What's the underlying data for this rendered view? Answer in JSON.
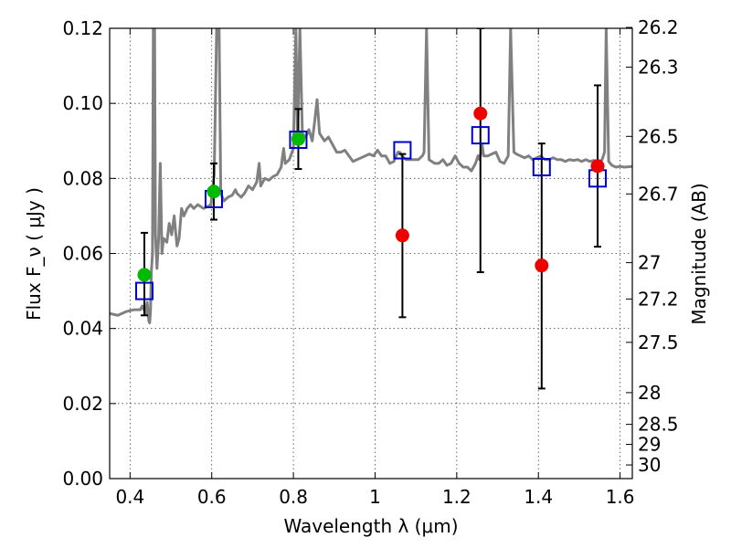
{
  "chart_data": {
    "type": "scatter",
    "xlabel": "Wavelength  λ (μm)",
    "ylabel": "Flux  F_ν  ( μJy )",
    "ylabel_right": "Magnitude (AB)",
    "xlim": [
      0.35,
      1.63
    ],
    "ylim": [
      0.0,
      0.12
    ],
    "grid": true,
    "x_ticks": [
      0.4,
      0.6,
      0.8,
      1.0,
      1.2,
      1.4,
      1.6
    ],
    "x_tick_labels": [
      "0.4",
      "0.6",
      "0.8",
      "1",
      "1.2",
      "1.4",
      "1.6"
    ],
    "y_ticks": [
      0.0,
      0.02,
      0.04,
      0.06,
      0.08,
      0.1,
      0.12
    ],
    "y_tick_labels": [
      "0.00",
      "0.02",
      "0.04",
      "0.06",
      "0.08",
      "0.10",
      "0.12"
    ],
    "right_ticks": [
      {
        "mag": 26.2,
        "label": "26.2"
      },
      {
        "mag": 26.3,
        "label": "26.3"
      },
      {
        "mag": 26.5,
        "label": "26.5"
      },
      {
        "mag": 26.7,
        "label": "26.7"
      },
      {
        "mag": 27.0,
        "label": "27"
      },
      {
        "mag": 27.2,
        "label": "27.2"
      },
      {
        "mag": 27.5,
        "label": "27.5"
      },
      {
        "mag": 28.0,
        "label": "28"
      },
      {
        "mag": 28.5,
        "label": "28.5"
      },
      {
        "mag": 29.0,
        "label": "29"
      },
      {
        "mag": 30.0,
        "label": "30"
      }
    ],
    "colors": {
      "model": "#808080",
      "green": "#00bb00",
      "red": "#ee0000",
      "squares": "#0000cc",
      "errorbar": "#000000"
    },
    "series": [
      {
        "style": "line-gray",
        "points": [
          [
            0.35,
            0.044
          ],
          [
            0.37,
            0.0435
          ],
          [
            0.39,
            0.0445
          ],
          [
            0.41,
            0.045
          ],
          [
            0.425,
            0.045
          ],
          [
            0.43,
            0.046
          ],
          [
            0.438,
            0.044
          ],
          [
            0.442,
            0.047
          ],
          [
            0.446,
            0.042
          ],
          [
            0.448,
            0.0415
          ],
          [
            0.45,
            0.0445
          ],
          [
            0.452,
            0.055
          ],
          [
            0.455,
            0.06
          ],
          [
            0.457,
            0.12
          ],
          [
            0.46,
            0.12
          ],
          [
            0.462,
            0.065
          ],
          [
            0.466,
            0.056
          ],
          [
            0.47,
            0.064
          ],
          [
            0.474,
            0.084
          ],
          [
            0.478,
            0.06
          ],
          [
            0.482,
            0.064
          ],
          [
            0.49,
            0.063
          ],
          [
            0.496,
            0.068
          ],
          [
            0.502,
            0.065
          ],
          [
            0.508,
            0.07
          ],
          [
            0.515,
            0.062
          ],
          [
            0.52,
            0.064
          ],
          [
            0.526,
            0.072
          ],
          [
            0.532,
            0.07
          ],
          [
            0.54,
            0.072
          ],
          [
            0.548,
            0.073
          ],
          [
            0.556,
            0.072
          ],
          [
            0.566,
            0.073
          ],
          [
            0.58,
            0.072
          ],
          [
            0.59,
            0.0725
          ],
          [
            0.598,
            0.073
          ],
          [
            0.606,
            0.081
          ],
          [
            0.612,
            0.12
          ],
          [
            0.618,
            0.12
          ],
          [
            0.622,
            0.076
          ],
          [
            0.63,
            0.074
          ],
          [
            0.64,
            0.075
          ],
          [
            0.65,
            0.0755
          ],
          [
            0.658,
            0.077
          ],
          [
            0.662,
            0.076
          ],
          [
            0.672,
            0.075
          ],
          [
            0.68,
            0.076
          ],
          [
            0.69,
            0.078
          ],
          [
            0.7,
            0.077
          ],
          [
            0.71,
            0.079
          ],
          [
            0.716,
            0.084
          ],
          [
            0.72,
            0.078
          ],
          [
            0.73,
            0.08
          ],
          [
            0.74,
            0.0795
          ],
          [
            0.75,
            0.0805
          ],
          [
            0.76,
            0.081
          ],
          [
            0.77,
            0.083
          ],
          [
            0.776,
            0.088
          ],
          [
            0.78,
            0.084
          ],
          [
            0.79,
            0.085
          ],
          [
            0.8,
            0.088
          ],
          [
            0.806,
            0.12
          ],
          [
            0.81,
            0.09
          ],
          [
            0.816,
            0.12
          ],
          [
            0.822,
            0.092
          ],
          [
            0.83,
            0.091
          ],
          [
            0.838,
            0.093
          ],
          [
            0.846,
            0.09
          ],
          [
            0.852,
            0.095
          ],
          [
            0.858,
            0.101
          ],
          [
            0.864,
            0.092
          ],
          [
            0.876,
            0.09
          ],
          [
            0.886,
            0.091
          ],
          [
            0.896,
            0.089
          ],
          [
            0.906,
            0.087
          ],
          [
            0.916,
            0.087
          ],
          [
            0.926,
            0.0875
          ],
          [
            0.936,
            0.086
          ],
          [
            0.946,
            0.0845
          ],
          [
            0.956,
            0.085
          ],
          [
            0.966,
            0.0855
          ],
          [
            0.976,
            0.086
          ],
          [
            0.986,
            0.0865
          ],
          [
            0.996,
            0.086
          ],
          [
            1.006,
            0.0875
          ],
          [
            1.016,
            0.086
          ],
          [
            1.026,
            0.086
          ],
          [
            1.036,
            0.084
          ],
          [
            1.046,
            0.0845
          ],
          [
            1.052,
            0.086
          ],
          [
            1.056,
            0.087
          ],
          [
            1.06,
            0.087
          ],
          [
            1.066,
            0.086
          ],
          [
            1.076,
            0.085
          ],
          [
            1.086,
            0.085
          ],
          [
            1.096,
            0.085
          ],
          [
            1.106,
            0.085
          ],
          [
            1.116,
            0.086
          ],
          [
            1.12,
            0.087
          ],
          [
            1.126,
            0.12
          ],
          [
            1.132,
            0.085
          ],
          [
            1.146,
            0.084
          ],
          [
            1.156,
            0.084
          ],
          [
            1.166,
            0.085
          ],
          [
            1.176,
            0.0835
          ],
          [
            1.186,
            0.084
          ],
          [
            1.196,
            0.086
          ],
          [
            1.206,
            0.084
          ],
          [
            1.216,
            0.083
          ],
          [
            1.226,
            0.083
          ],
          [
            1.236,
            0.082
          ],
          [
            1.246,
            0.084
          ],
          [
            1.252,
            0.086
          ],
          [
            1.256,
            0.085
          ],
          [
            1.262,
            0.089
          ],
          [
            1.266,
            0.086
          ],
          [
            1.276,
            0.086
          ],
          [
            1.286,
            0.0865
          ],
          [
            1.296,
            0.087
          ],
          [
            1.306,
            0.0845
          ],
          [
            1.316,
            0.084
          ],
          [
            1.326,
            0.086
          ],
          [
            1.332,
            0.12
          ],
          [
            1.34,
            0.087
          ],
          [
            1.346,
            0.0865
          ],
          [
            1.356,
            0.086
          ],
          [
            1.366,
            0.0855
          ],
          [
            1.376,
            0.086
          ],
          [
            1.386,
            0.085
          ],
          [
            1.396,
            0.0855
          ],
          [
            1.406,
            0.086
          ],
          [
            1.416,
            0.085
          ],
          [
            1.426,
            0.085
          ],
          [
            1.436,
            0.0855
          ],
          [
            1.446,
            0.085
          ],
          [
            1.456,
            0.085
          ],
          [
            1.466,
            0.0845
          ],
          [
            1.476,
            0.085
          ],
          [
            1.486,
            0.0848
          ],
          [
            1.496,
            0.085
          ],
          [
            1.506,
            0.0845
          ],
          [
            1.516,
            0.085
          ],
          [
            1.526,
            0.0845
          ],
          [
            1.536,
            0.0848
          ],
          [
            1.546,
            0.084
          ],
          [
            1.556,
            0.085
          ],
          [
            1.562,
            0.087
          ],
          [
            1.566,
            0.12
          ],
          [
            1.572,
            0.0845
          ],
          [
            1.58,
            0.0835
          ],
          [
            1.59,
            0.083
          ],
          [
            1.6,
            0.0832
          ],
          [
            1.61,
            0.083
          ],
          [
            1.63,
            0.0832
          ]
        ]
      },
      {
        "style": "circle-green",
        "points": [
          {
            "x": 0.435,
            "y": 0.0543,
            "err_lo": 0.0435,
            "err_hi": 0.0655
          },
          {
            "x": 0.605,
            "y": 0.0765,
            "err_lo": 0.069,
            "err_hi": 0.084
          },
          {
            "x": 0.812,
            "y": 0.0905,
            "err_lo": 0.0825,
            "err_hi": 0.0985
          }
        ]
      },
      {
        "style": "circle-red",
        "points": [
          {
            "x": 1.067,
            "y": 0.0648,
            "err_lo": 0.043,
            "err_hi": 0.0865
          },
          {
            "x": 1.258,
            "y": 0.0973,
            "err_lo": 0.055,
            "err_hi": 0.12
          },
          {
            "x": 1.408,
            "y": 0.0568,
            "err_lo": 0.024,
            "err_hi": 0.0893
          },
          {
            "x": 1.545,
            "y": 0.0833,
            "err_lo": 0.0618,
            "err_hi": 0.1048
          }
        ]
      },
      {
        "style": "square-blue",
        "points": [
          {
            "x": 0.435,
            "y": 0.05
          },
          {
            "x": 0.605,
            "y": 0.0745
          },
          {
            "x": 0.812,
            "y": 0.0903
          },
          {
            "x": 1.067,
            "y": 0.0875
          },
          {
            "x": 1.258,
            "y": 0.0915
          },
          {
            "x": 1.408,
            "y": 0.083
          },
          {
            "x": 1.545,
            "y": 0.08
          }
        ]
      }
    ]
  }
}
